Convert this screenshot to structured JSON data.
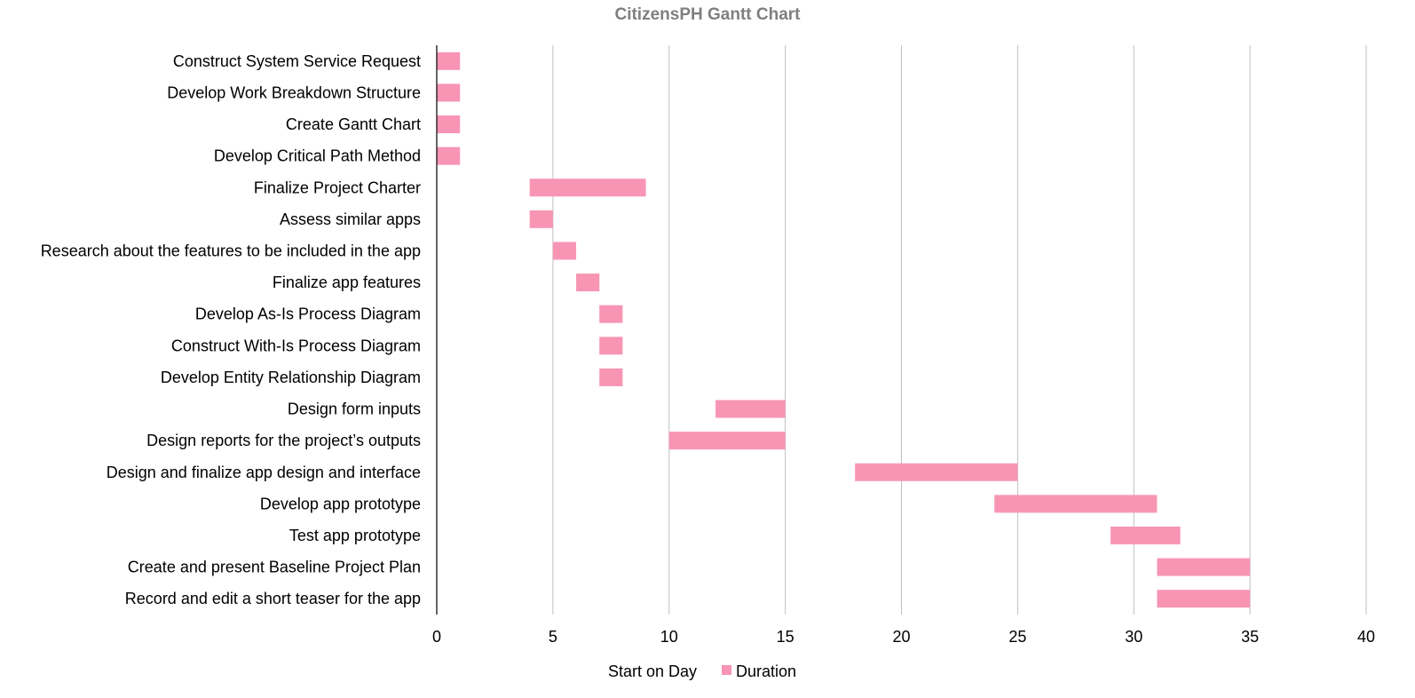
{
  "chart_data": {
    "type": "bar",
    "orientation": "horizontal-stacked",
    "title": "CitizensPH Gantt Chart",
    "xlabel": "",
    "ylabel": "",
    "xlim": [
      0,
      40
    ],
    "xticks": [
      0,
      5,
      10,
      15,
      20,
      25,
      30,
      35,
      40
    ],
    "grid": true,
    "legend_position": "bottom",
    "categories": [
      "Construct System Service Request",
      "Develop Work Breakdown Structure",
      "Create Gantt Chart",
      "Develop Critical Path Method",
      "Finalize Project Charter",
      "Assess similar apps",
      "Research about the features to be included in the app",
      "Finalize app features",
      "Develop As-Is Process Diagram",
      "Construct With-Is Process Diagram",
      "Develop Entity Relationship Diagram",
      "Design form inputs",
      "Design reports for the project’s outputs",
      "Design and finalize app design and interface",
      "Develop app prototype",
      "Test app prototype",
      "Create and present Baseline Project Plan",
      "Record and edit a short teaser for the app"
    ],
    "series": [
      {
        "name": "Start on Day",
        "color": "none",
        "values": [
          0,
          0,
          0,
          0,
          4,
          4,
          5,
          6,
          7,
          7,
          7,
          12,
          10,
          18,
          24,
          29,
          31,
          31
        ]
      },
      {
        "name": "Duration",
        "color": "#f895b4",
        "values": [
          1,
          1,
          1,
          1,
          5,
          1,
          1,
          1,
          1,
          1,
          1,
          3,
          5,
          7,
          7,
          3,
          4,
          4
        ]
      }
    ]
  }
}
